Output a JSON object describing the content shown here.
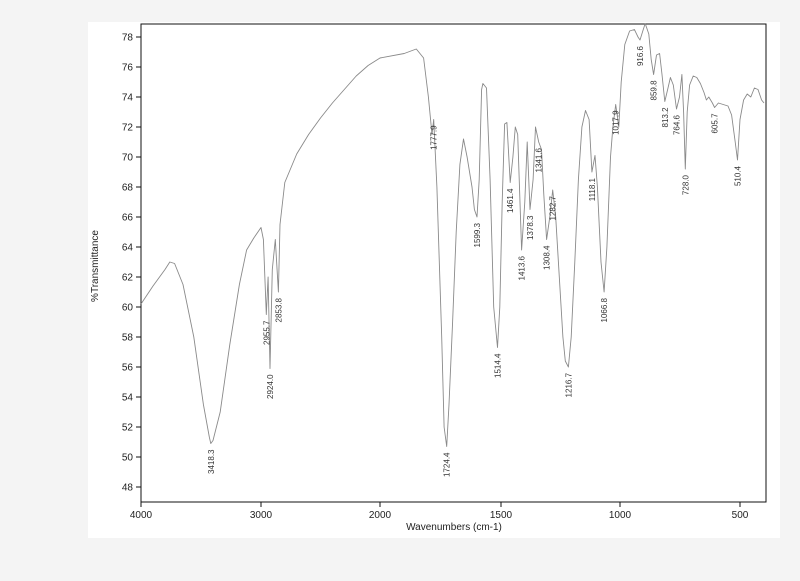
{
  "chart_data": {
    "type": "line",
    "xlabel": "Wavenumbers (cm-1)",
    "ylabel": "%Transmittance",
    "xlim": [
      4000,
      400
    ],
    "ylim": [
      47,
      79
    ],
    "x_axis_reversed": true,
    "x_ticks": [
      4000,
      3000,
      2000,
      1500,
      1000,
      500
    ],
    "y_ticks": [
      48,
      50,
      52,
      54,
      56,
      58,
      60,
      62,
      64,
      66,
      68,
      70,
      72,
      74,
      76,
      78
    ],
    "grid": false,
    "line_color": "#8a8a8a",
    "series": [
      {
        "points": [
          [
            4000,
            60.2
          ],
          [
            3900,
            61.4
          ],
          [
            3800,
            62.5
          ],
          [
            3760,
            63.0
          ],
          [
            3720,
            62.9
          ],
          [
            3650,
            61.5
          ],
          [
            3560,
            58.0
          ],
          [
            3480,
            53.5
          ],
          [
            3430,
            51.3
          ],
          [
            3418,
            50.9
          ],
          [
            3400,
            51.1
          ],
          [
            3340,
            53.0
          ],
          [
            3260,
            57.5
          ],
          [
            3180,
            61.5
          ],
          [
            3120,
            63.8
          ],
          [
            3060,
            64.6
          ],
          [
            3000,
            65.3
          ],
          [
            2980,
            64.5
          ],
          [
            2955.7,
            59.5
          ],
          [
            2940,
            62.0
          ],
          [
            2924.0,
            55.9
          ],
          [
            2905,
            62.5
          ],
          [
            2880,
            64.5
          ],
          [
            2853.8,
            61.0
          ],
          [
            2840,
            65.5
          ],
          [
            2800,
            68.3
          ],
          [
            2700,
            70.2
          ],
          [
            2600,
            71.5
          ],
          [
            2500,
            72.6
          ],
          [
            2400,
            73.6
          ],
          [
            2300,
            74.5
          ],
          [
            2200,
            75.4
          ],
          [
            2100,
            76.1
          ],
          [
            2000,
            76.6
          ],
          [
            1900,
            76.9
          ],
          [
            1850,
            77.2
          ],
          [
            1820,
            76.6
          ],
          [
            1800,
            74.0
          ],
          [
            1785,
            71.5
          ],
          [
            1777.9,
            72.5
          ],
          [
            1765,
            68.0
          ],
          [
            1745,
            58.0
          ],
          [
            1735,
            52.0
          ],
          [
            1724.4,
            50.7
          ],
          [
            1715,
            53.5
          ],
          [
            1700,
            59.0
          ],
          [
            1685,
            65.0
          ],
          [
            1670,
            69.5
          ],
          [
            1655,
            71.2
          ],
          [
            1640,
            70.0
          ],
          [
            1620,
            68.0
          ],
          [
            1610,
            66.5
          ],
          [
            1599.3,
            66.0
          ],
          [
            1590,
            68.5
          ],
          [
            1580,
            74.5
          ],
          [
            1575,
            74.9
          ],
          [
            1560,
            74.6
          ],
          [
            1545,
            68.5
          ],
          [
            1530,
            60.0
          ],
          [
            1514.4,
            57.3
          ],
          [
            1505,
            60.0
          ],
          [
            1495,
            67.0
          ],
          [
            1485,
            72.2
          ],
          [
            1475,
            72.3
          ],
          [
            1461.4,
            68.3
          ],
          [
            1450,
            70.0
          ],
          [
            1440,
            72.0
          ],
          [
            1430,
            71.5
          ],
          [
            1413.6,
            63.8
          ],
          [
            1400,
            67.0
          ],
          [
            1390,
            71.0
          ],
          [
            1378.3,
            66.5
          ],
          [
            1365,
            68.5
          ],
          [
            1355,
            72.0
          ],
          [
            1341.6,
            71.0
          ],
          [
            1330,
            70.5
          ],
          [
            1320,
            67.5
          ],
          [
            1308.4,
            64.5
          ],
          [
            1295,
            66.0
          ],
          [
            1282.7,
            67.8
          ],
          [
            1270,
            66.0
          ],
          [
            1255,
            62.0
          ],
          [
            1240,
            58.0
          ],
          [
            1230,
            56.4
          ],
          [
            1216.7,
            56.0
          ],
          [
            1205,
            58.0
          ],
          [
            1190,
            63.0
          ],
          [
            1175,
            68.5
          ],
          [
            1160,
            72.0
          ],
          [
            1145,
            73.1
          ],
          [
            1130,
            72.5
          ],
          [
            1118.1,
            69.0
          ],
          [
            1105,
            70.1
          ],
          [
            1095,
            68.0
          ],
          [
            1080,
            63.0
          ],
          [
            1066.8,
            61.0
          ],
          [
            1055,
            64.0
          ],
          [
            1040,
            70.0
          ],
          [
            1030,
            72.0
          ],
          [
            1017.9,
            73.5
          ],
          [
            1005,
            72.0
          ],
          [
            995,
            75.0
          ],
          [
            980,
            77.5
          ],
          [
            960,
            78.4
          ],
          [
            940,
            78.5
          ],
          [
            925,
            78.0
          ],
          [
            916.6,
            77.8
          ],
          [
            905,
            78.4
          ],
          [
            895,
            78.9
          ],
          [
            880,
            78.2
          ],
          [
            870,
            76.5
          ],
          [
            859.8,
            75.5
          ],
          [
            848,
            76.8
          ],
          [
            835,
            76.9
          ],
          [
            825,
            75.5
          ],
          [
            813.2,
            73.7
          ],
          [
            800,
            74.6
          ],
          [
            790,
            75.3
          ],
          [
            778,
            74.8
          ],
          [
            764.6,
            73.2
          ],
          [
            752,
            74.0
          ],
          [
            742,
            75.5
          ],
          [
            735,
            73.0
          ],
          [
            728.0,
            69.2
          ],
          [
            720,
            73.0
          ],
          [
            710,
            74.8
          ],
          [
            695,
            75.4
          ],
          [
            680,
            75.3
          ],
          [
            665,
            74.9
          ],
          [
            650,
            74.3
          ],
          [
            640,
            73.8
          ],
          [
            630,
            74.0
          ],
          [
            615,
            73.6
          ],
          [
            605.7,
            73.3
          ],
          [
            590,
            73.6
          ],
          [
            570,
            73.5
          ],
          [
            550,
            73.4
          ],
          [
            535,
            72.8
          ],
          [
            520,
            71.0
          ],
          [
            510.4,
            69.8
          ],
          [
            500,
            72.5
          ],
          [
            485,
            73.8
          ],
          [
            470,
            74.2
          ],
          [
            455,
            74.0
          ],
          [
            440,
            74.6
          ],
          [
            425,
            74.5
          ],
          [
            410,
            73.8
          ],
          [
            400,
            73.6
          ]
        ]
      }
    ],
    "annotations": [
      {
        "text": "3418.3",
        "x": 3418.3,
        "y": 50.9
      },
      {
        "text": "2955.7",
        "x": 2955.7,
        "y": 59.5
      },
      {
        "text": "2924.0",
        "x": 2924.0,
        "y": 55.9
      },
      {
        "text": "2853.8",
        "x": 2853.8,
        "y": 61.0
      },
      {
        "text": "1777.9",
        "x": 1777.9,
        "y": 72.5
      },
      {
        "text": "1724.4",
        "x": 1724.4,
        "y": 50.7
      },
      {
        "text": "1599.3",
        "x": 1599.3,
        "y": 66.0
      },
      {
        "text": "1514.4",
        "x": 1514.4,
        "y": 57.3
      },
      {
        "text": "1461.4",
        "x": 1461.4,
        "y": 68.3
      },
      {
        "text": "1413.6",
        "x": 1413.6,
        "y": 63.8
      },
      {
        "text": "1378.3",
        "x": 1378.3,
        "y": 66.5
      },
      {
        "text": "1341.6",
        "x": 1341.6,
        "y": 71.0
      },
      {
        "text": "1308.4",
        "x": 1308.4,
        "y": 64.5
      },
      {
        "text": "1282.7",
        "x": 1282.7,
        "y": 67.8
      },
      {
        "text": "1216.7",
        "x": 1216.7,
        "y": 56.0
      },
      {
        "text": "1118.1",
        "x": 1118.1,
        "y": 69.0
      },
      {
        "text": "1066.8",
        "x": 1066.8,
        "y": 61.0
      },
      {
        "text": "1017.9",
        "x": 1017.9,
        "y": 73.5
      },
      {
        "text": "916.6",
        "x": 916.6,
        "y": 77.8
      },
      {
        "text": "859.8",
        "x": 859.8,
        "y": 75.5
      },
      {
        "text": "813.2",
        "x": 813.2,
        "y": 73.7
      },
      {
        "text": "764.6",
        "x": 764.6,
        "y": 73.2
      },
      {
        "text": "728.0",
        "x": 728.0,
        "y": 69.2
      },
      {
        "text": "605.7",
        "x": 605.7,
        "y": 73.3
      },
      {
        "text": "510.4",
        "x": 510.4,
        "y": 69.8
      }
    ]
  }
}
